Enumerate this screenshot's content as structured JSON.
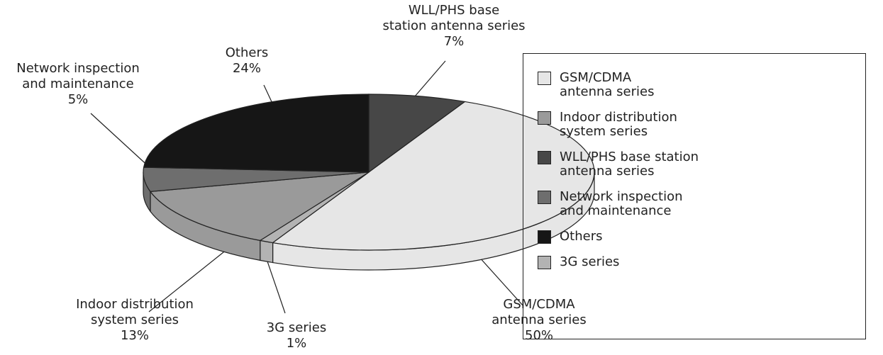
{
  "chart_data": {
    "type": "pie3d",
    "values": [
      7,
      50,
      1,
      13,
      5,
      24
    ],
    "value_labels": [
      "7%",
      "50%",
      "1%",
      "13%",
      "5%",
      "24%"
    ],
    "labels": [
      [
        "WLL/PHS base",
        "station antenna series"
      ],
      [
        "GSM/CDMA",
        "antenna series"
      ],
      [
        "3G series"
      ],
      [
        "Indoor distribution",
        "system series"
      ],
      [
        "Network inspection",
        "and maintenance"
      ],
      [
        "Others"
      ]
    ],
    "colors": [
      "#474747",
      "#e6e6e6",
      "#b3b3b3",
      "#9a9a9a",
      "#6e6e6e",
      "#161616"
    ],
    "legend": [
      {
        "label": [
          "GSM/CDMA",
          "antenna series"
        ],
        "color": "#e6e6e6"
      },
      {
        "label": [
          "Indoor distribution",
          "system series"
        ],
        "color": "#9a9a9a"
      },
      {
        "label": [
          "WLL/PHS base station",
          "antenna series"
        ],
        "color": "#474747"
      },
      {
        "label": [
          "Network inspection",
          "and maintenance"
        ],
        "color": "#6e6e6e"
      },
      {
        "label": [
          "Others"
        ],
        "color": "#161616"
      },
      {
        "label": [
          "3G series"
        ],
        "color": "#b3b3b3"
      }
    ]
  }
}
